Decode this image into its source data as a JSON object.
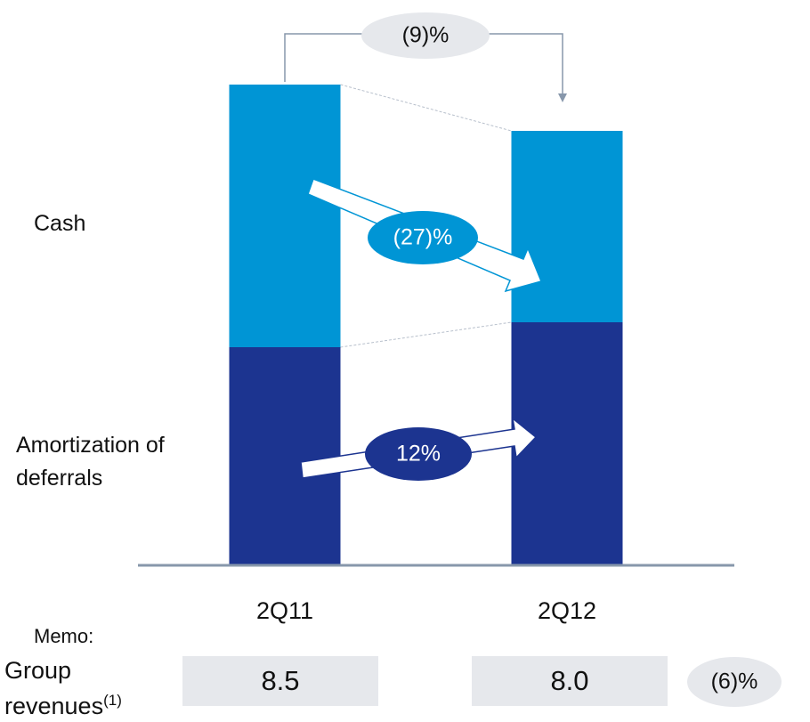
{
  "chart_data": {
    "type": "bar",
    "stacked": true,
    "categories": [
      "2Q11",
      "2Q12"
    ],
    "series": [
      {
        "name": "Amortization of deferrals",
        "color": "#1c3490",
        "values": [
          245,
          273
        ]
      },
      {
        "name": "Cash",
        "color": "#0095d5",
        "values": [
          295,
          215
        ]
      }
    ],
    "ylim": [
      0,
      540
    ],
    "annotations": {
      "total_change": "(9)%",
      "cash_change": "(27)%",
      "amortization_change": "12%"
    },
    "memo": {
      "label": "Memo:",
      "title": "Group revenues",
      "footnote": "(1)",
      "values": [
        8.5,
        8.0
      ],
      "value_labels": [
        "8.5",
        "8.0"
      ],
      "change": "(6)%"
    }
  }
}
